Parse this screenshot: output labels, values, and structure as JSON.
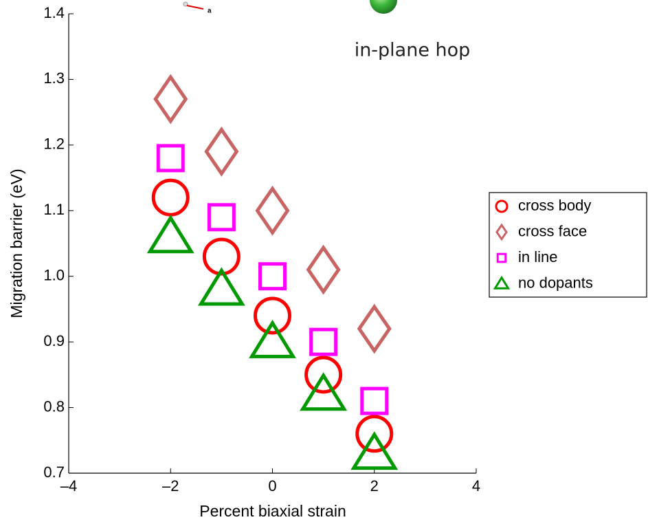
{
  "chart_data": {
    "type": "scatter",
    "annotations": [
      "in-plane hop",
      "a"
    ],
    "x_label": "Percent biaxial strain",
    "y_label": "Migration barrier (eV)",
    "xlim": [
      -4,
      4
    ],
    "xticks": [
      {
        "value": -4,
        "label": "–4"
      },
      {
        "value": -2,
        "label": "–2"
      },
      0,
      2,
      4
    ],
    "ylim": [
      0.7,
      1.4
    ],
    "yticks": [
      0.7,
      0.8,
      0.9,
      {
        "value": 1,
        "label": "1.0"
      },
      1.1,
      1.2,
      1.3,
      1.4
    ],
    "legend": "right",
    "series": [
      {
        "name": "cross body",
        "color": "#ff0000",
        "marker": "circle",
        "x": [
          -2,
          -1,
          0,
          1,
          2
        ],
        "values": [
          1.12,
          1.03,
          0.94,
          0.85,
          0.76
        ]
      },
      {
        "name": "cross face",
        "color": "#c86464",
        "marker": "diamond",
        "x": [
          -2,
          -1,
          0,
          1,
          2
        ],
        "values": [
          1.27,
          1.19,
          1.1,
          1.01,
          0.92
        ]
      },
      {
        "name": "in line",
        "color": "#ff00ff",
        "marker": "square",
        "x": [
          -2,
          -1,
          0,
          1,
          2
        ],
        "values": [
          1.18,
          1.09,
          1.0,
          0.9,
          0.81
        ]
      },
      {
        "name": "no dopants",
        "color": "#009900",
        "marker": "triangle",
        "x": [
          -2,
          -1,
          0,
          1,
          2
        ],
        "values": [
          1.06,
          0.98,
          0.9,
          0.82,
          0.73
        ]
      }
    ]
  }
}
